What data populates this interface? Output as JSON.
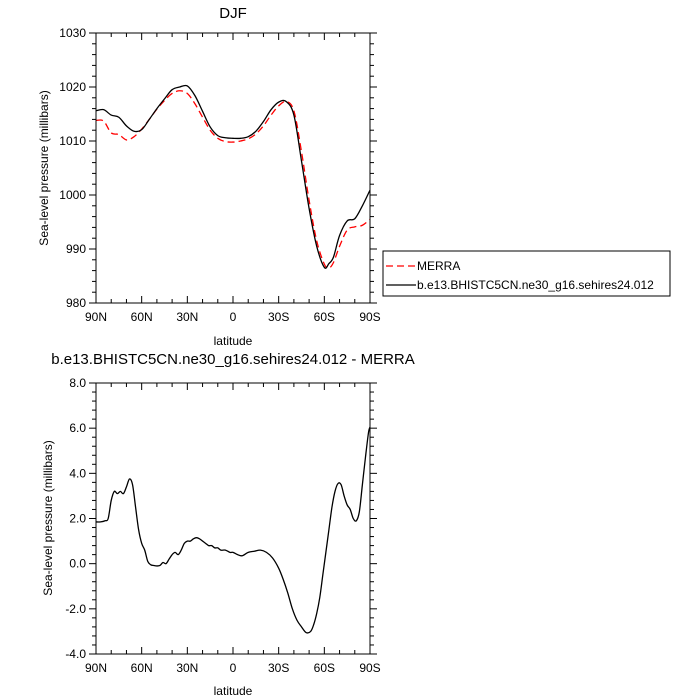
{
  "chart_data": [
    {
      "type": "line",
      "title": "DJF",
      "xlabel": "latitude",
      "ylabel": "Sea-level pressure (millibars)",
      "x_ticks": [
        {
          "value": 90,
          "label": "90N"
        },
        {
          "value": 60,
          "label": "60N"
        },
        {
          "value": 30,
          "label": "30N"
        },
        {
          "value": 0,
          "label": "0"
        },
        {
          "value": -30,
          "label": "30S"
        },
        {
          "value": -60,
          "label": "60S"
        },
        {
          "value": -90,
          "label": "90S"
        }
      ],
      "xlim": [
        90,
        -90
      ],
      "y_ticks": [
        {
          "value": 980,
          "label": "980"
        },
        {
          "value": 990,
          "label": "990"
        },
        {
          "value": 1000,
          "label": "1000"
        },
        {
          "value": 1010,
          "label": "1010"
        },
        {
          "value": 1020,
          "label": "1020"
        },
        {
          "value": 1030,
          "label": "1030"
        }
      ],
      "ylim": [
        980,
        1030
      ],
      "legend_position": "right",
      "series": [
        {
          "name": "MERRA",
          "color": "#ff0000",
          "dash": "dashed",
          "x": [
            90,
            85,
            80,
            75,
            70,
            65,
            60,
            55,
            50,
            45,
            40,
            35,
            30,
            25,
            20,
            15,
            10,
            5,
            0,
            -5,
            -10,
            -15,
            -20,
            -25,
            -30,
            -35,
            -40,
            -45,
            -50,
            -55,
            -60,
            -63,
            -66,
            -70,
            -75,
            -80,
            -85,
            -90
          ],
          "y": [
            1013.8,
            1013.7,
            1011.5,
            1011.2,
            1010.2,
            1010.8,
            1012.2,
            1014.0,
            1015.9,
            1017.5,
            1018.8,
            1019.3,
            1018.8,
            1016.9,
            1014.4,
            1012.0,
            1010.5,
            1009.9,
            1009.8,
            1010.0,
            1010.4,
            1011.3,
            1012.8,
            1014.8,
            1016.5,
            1017.3,
            1015.6,
            1008.0,
            999.0,
            991.5,
            987.2,
            986.5,
            987.5,
            990.5,
            993.5,
            994.1,
            994.4,
            995.5
          ]
        },
        {
          "name": "b.e13.BHISTC5CN.ne30_g16.sehires24.012",
          "color": "#000000",
          "dash": "solid",
          "x": [
            90,
            85,
            80,
            75,
            70,
            65,
            60,
            55,
            50,
            45,
            40,
            35,
            30,
            25,
            20,
            15,
            10,
            5,
            0,
            -5,
            -10,
            -15,
            -20,
            -25,
            -30,
            -35,
            -40,
            -45,
            -50,
            -55,
            -60,
            -63,
            -66,
            -70,
            -75,
            -80,
            -85,
            -90
          ],
          "y": [
            1015.6,
            1015.8,
            1014.8,
            1014.4,
            1012.8,
            1011.8,
            1012.1,
            1014.0,
            1016.0,
            1017.8,
            1019.5,
            1020.0,
            1020.2,
            1018.4,
            1015.5,
            1012.6,
            1011.0,
            1010.6,
            1010.5,
            1010.5,
            1010.8,
            1011.8,
            1013.6,
            1015.8,
            1017.2,
            1017.3,
            1014.8,
            1006.3,
            997.5,
            990.5,
            986.6,
            987.3,
            988.5,
            992.5,
            995.2,
            995.6,
            998.0,
            1000.9
          ]
        }
      ]
    },
    {
      "type": "line",
      "title": "b.e13.BHISTC5CN.ne30_g16.sehires24.012 - MERRA",
      "xlabel": "latitude",
      "ylabel": "Sea-level pressure (millibars)",
      "x_ticks": [
        {
          "value": 90,
          "label": "90N"
        },
        {
          "value": 60,
          "label": "60N"
        },
        {
          "value": 30,
          "label": "30N"
        },
        {
          "value": 0,
          "label": "0"
        },
        {
          "value": -30,
          "label": "30S"
        },
        {
          "value": -60,
          "label": "60S"
        },
        {
          "value": -90,
          "label": "90S"
        }
      ],
      "xlim": [
        90,
        -90
      ],
      "y_ticks": [
        {
          "value": -4,
          "label": "-4.0"
        },
        {
          "value": -2,
          "label": "-2.0"
        },
        {
          "value": 0,
          "label": "0.0"
        },
        {
          "value": 2,
          "label": "2.0"
        },
        {
          "value": 4,
          "label": "4.0"
        },
        {
          "value": 6,
          "label": "6.0"
        },
        {
          "value": 8,
          "label": "8.0"
        }
      ],
      "ylim": [
        -4,
        8
      ],
      "series": [
        {
          "color": "#000000",
          "dash": "solid",
          "x": [
            90,
            87,
            84,
            82,
            80,
            78,
            76,
            74,
            72,
            70,
            68,
            66,
            64,
            62,
            60,
            58,
            56,
            54,
            52,
            50,
            48,
            46,
            44,
            42,
            40,
            38,
            36,
            34,
            32,
            30,
            28,
            26,
            24,
            22,
            20,
            18,
            16,
            14,
            12,
            10,
            8,
            5,
            2,
            0,
            -3,
            -6,
            -10,
            -14,
            -18,
            -22,
            -26,
            -30,
            -33,
            -36,
            -39,
            -42,
            -45,
            -48,
            -51,
            -53,
            -55,
            -57,
            -59,
            -61,
            -63,
            -65,
            -67,
            -69,
            -71,
            -73,
            -75,
            -77,
            -79,
            -81,
            -83,
            -85,
            -87,
            -89,
            -90
          ],
          "y": [
            1.85,
            1.85,
            1.9,
            2.0,
            2.8,
            3.2,
            3.1,
            3.2,
            3.1,
            3.4,
            3.75,
            3.5,
            2.5,
            1.5,
            0.9,
            0.6,
            0.1,
            -0.05,
            -0.08,
            -0.1,
            -0.08,
            0.05,
            0.0,
            0.2,
            0.4,
            0.5,
            0.4,
            0.6,
            0.9,
            1.0,
            1.0,
            1.1,
            1.15,
            1.1,
            1.0,
            0.9,
            0.8,
            0.8,
            0.7,
            0.7,
            0.6,
            0.6,
            0.5,
            0.5,
            0.4,
            0.35,
            0.5,
            0.55,
            0.6,
            0.5,
            0.25,
            -0.2,
            -0.7,
            -1.3,
            -2.0,
            -2.5,
            -2.8,
            -3.05,
            -3.0,
            -2.7,
            -2.2,
            -1.5,
            -0.5,
            0.5,
            1.5,
            2.5,
            3.2,
            3.55,
            3.5,
            3.0,
            2.6,
            2.4,
            2.0,
            1.9,
            2.3,
            3.5,
            4.7,
            5.8,
            6.05
          ]
        }
      ]
    }
  ]
}
